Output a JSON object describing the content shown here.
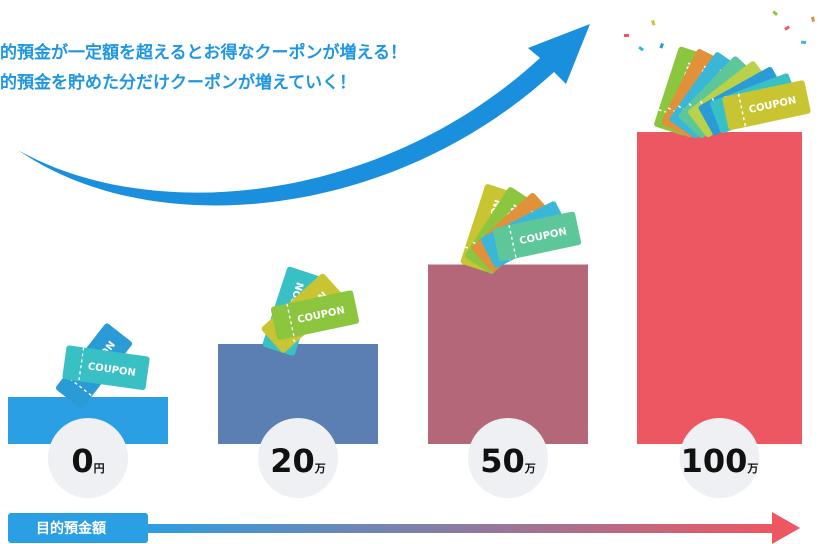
{
  "headline": {
    "line1": "的預金が一定額を超えるとお得なクーポンが増える！",
    "line2": "的預金を貯めた分だけクーポンが増えていく！"
  },
  "chart_data": {
    "type": "bar",
    "categories": [
      {
        "amount": "0",
        "unit": "円"
      },
      {
        "amount": "20",
        "unit": "万"
      },
      {
        "amount": "50",
        "unit": "万"
      },
      {
        "amount": "100",
        "unit": "万"
      }
    ],
    "values": [
      0,
      20,
      50,
      100
    ],
    "coupon_counts": [
      2,
      3,
      5,
      8
    ],
    "coupon_label": "COUPON",
    "xlabel": "目的預金額",
    "legend": "none",
    "grid": false
  },
  "colors": {
    "bars": [
      "#2b9fe3",
      "#5b7fb3",
      "#b5677a",
      "#ec5761"
    ],
    "headline": "#1f97e0",
    "trend_arrow": "#1a8fde",
    "axis_arrow_start": "#2b9fe3",
    "axis_arrow_end": "#ec5761",
    "label_circle": "#eef0f3",
    "coupons": [
      "#2a9bd6",
      "#38c0c5",
      "#c9c532",
      "#8cc63f",
      "#e0913a",
      "#3ab6d9",
      "#5dc79a",
      "#b9d24a"
    ]
  }
}
